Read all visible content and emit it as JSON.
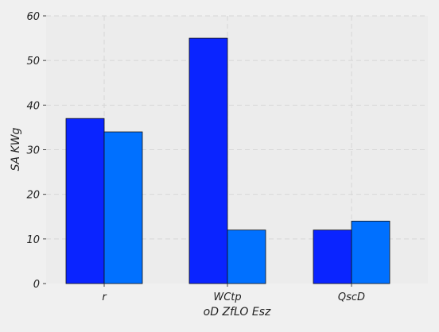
{
  "chart_data": {
    "type": "bar",
    "title": "",
    "xlabel": "oD ZfLO Esz",
    "ylabel": "SA  KWg",
    "categories": [
      "r",
      "WCtp",
      "QscD"
    ],
    "series": [
      {
        "values": [
          37,
          55,
          12
        ],
        "color": "#0a24ff"
      },
      {
        "values": [
          34,
          12,
          14
        ],
        "color": "#0070ff"
      }
    ],
    "ylim": [
      0,
      60
    ],
    "yticks": [
      0,
      10,
      20,
      30,
      40,
      50,
      60
    ],
    "grid": true,
    "legend": "none"
  },
  "colors": {
    "background": "#f0f0f0",
    "plot_background": "#ececec",
    "grid": "#d6d6d6"
  }
}
